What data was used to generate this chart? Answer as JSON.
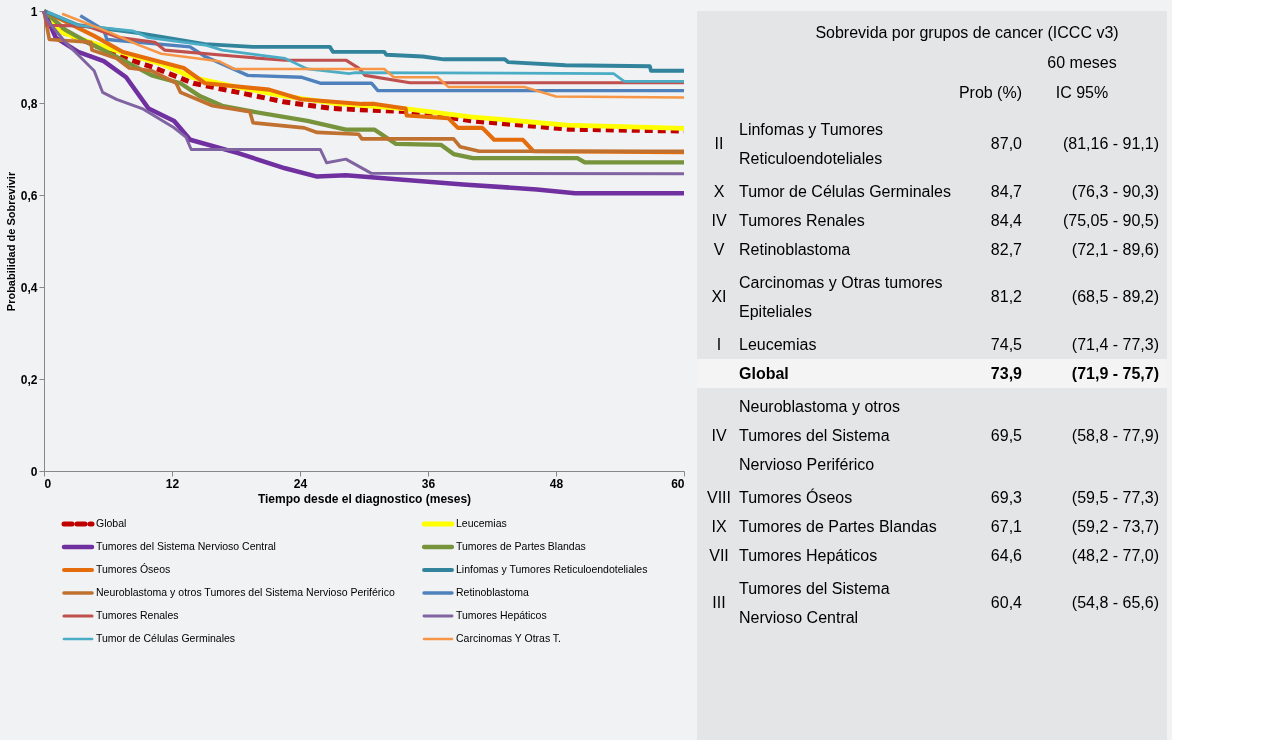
{
  "chart_data": [
    {
      "type": "line",
      "xlabel": "Tiempo desde el diagnostico (meses)",
      "ylabel": "Probabilidad de Sobrevivir",
      "xlim": [
        0,
        60
      ],
      "xticks": [
        0,
        12,
        24,
        36,
        48,
        60
      ],
      "ylim": [
        0,
        1
      ],
      "yticks": [
        0,
        {
          "value": 0.2,
          "label": "0,2"
        },
        {
          "value": 0.4,
          "label": "0,4"
        },
        {
          "value": 0.6,
          "label": "0,6"
        },
        {
          "value": 0.8,
          "label": "0,8"
        },
        1
      ],
      "grid": false,
      "legend": "bottom",
      "marker": "none",
      "line_style": "solid",
      "series": [
        {
          "name": "Global",
          "color": "#c00000",
          "line_style": "dashed",
          "x": [
            0,
            1.4,
            4.1,
            7.7,
            10.4,
            14,
            18.2,
            22.6,
            27.1,
            34.3,
            40.2,
            49.2,
            60
          ],
          "values": [
            1,
            0.957,
            0.932,
            0.897,
            0.876,
            0.843,
            0.823,
            0.802,
            0.788,
            0.781,
            0.761,
            0.743,
            0.739
          ]
        },
        {
          "name": "Leucemias",
          "color": "#ffff00",
          "x": [
            0,
            1.5,
            4,
            8,
            11,
            14,
            18,
            22.6,
            27,
            34,
            40,
            49,
            55,
            60
          ],
          "values": [
            1,
            0.955,
            0.935,
            0.905,
            0.885,
            0.855,
            0.835,
            0.815,
            0.8,
            0.787,
            0.77,
            0.752,
            0.748,
            0.745
          ]
        },
        {
          "name": "Tumores del Sistema Nervioso Central",
          "color": "#7030a0",
          "x": [
            0,
            1.1,
            3.2,
            5.6,
            7.7,
            9.8,
            12.2,
            13.7,
            18.2,
            22.6,
            25.6,
            28.3,
            39.3,
            46.2,
            49.8,
            60
          ],
          "values": [
            1,
            0.942,
            0.911,
            0.891,
            0.856,
            0.788,
            0.761,
            0.72,
            0.691,
            0.658,
            0.64,
            0.643,
            0.623,
            0.612,
            0.604,
            0.604
          ]
        },
        {
          "name": "Tumores de Partes Blandas",
          "color": "#77933c",
          "x": [
            0,
            2,
            4.1,
            7.1,
            10.1,
            12.8,
            14.6,
            16.7,
            19.6,
            24.7,
            28.3,
            31,
            33,
            37.2,
            38.4,
            40.2,
            50,
            50.7,
            60
          ],
          "values": [
            1,
            0.959,
            0.932,
            0.897,
            0.86,
            0.843,
            0.815,
            0.794,
            0.781,
            0.761,
            0.742,
            0.742,
            0.711,
            0.709,
            0.689,
            0.68,
            0.68,
            0.671,
            0.671
          ]
        },
        {
          "name": "Tumores Óseos",
          "color": "#e46c0a",
          "x": [
            0,
            4.7,
            7.4,
            13.1,
            15.1,
            21.1,
            24.1,
            29.8,
            31,
            33.9,
            34,
            37.9,
            38.8,
            41.1,
            42.2,
            44.9,
            45.9,
            60
          ],
          "values": [
            1,
            0.946,
            0.911,
            0.876,
            0.843,
            0.829,
            0.808,
            0.798,
            0.798,
            0.788,
            0.773,
            0.767,
            0.746,
            0.746,
            0.72,
            0.72,
            0.695,
            0.693
          ]
        },
        {
          "name": "Linfomas y Tumores Reticuloendoteliales",
          "color": "#31849b",
          "x": [
            0,
            3.2,
            8.6,
            15.1,
            19.6,
            26.8,
            27.1,
            31.9,
            32.1,
            35.5,
            37.5,
            43.2,
            43.5,
            48.9,
            56.8,
            56.9,
            60
          ],
          "values": [
            1,
            0.969,
            0.953,
            0.928,
            0.922,
            0.922,
            0.911,
            0.911,
            0.905,
            0.901,
            0.895,
            0.895,
            0.889,
            0.882,
            0.88,
            0.87,
            0.87
          ]
        },
        {
          "name": "Neuroblastoma y otros Tumores del Sistema Nervioso Periférico",
          "color": "#c0712f",
          "x": [
            0,
            0.5,
            4.4,
            4.5,
            6.8,
            8,
            10.1,
            12.4,
            12.8,
            15.8,
            19.3,
            19.6,
            24.4,
            25.6,
            29.5,
            29.8,
            38.4,
            39,
            40.8,
            60
          ],
          "values": [
            1,
            0.938,
            0.932,
            0.915,
            0.897,
            0.876,
            0.87,
            0.843,
            0.823,
            0.794,
            0.781,
            0.757,
            0.746,
            0.736,
            0.732,
            0.722,
            0.722,
            0.705,
            0.695,
            0.695
          ]
        },
        {
          "name": "Retinoblastoma",
          "color": "#4f81bd",
          "x": [
            3.4,
            5.6,
            5.9,
            13.7,
            15.1,
            19.1,
            24.1,
            25.9,
            30.7,
            31.3,
            60
          ],
          "values": [
            0.99,
            0.959,
            0.938,
            0.922,
            0.901,
            0.86,
            0.856,
            0.843,
            0.843,
            0.827,
            0.827
          ]
        },
        {
          "name": "Tumores Renales",
          "color": "#c0504d",
          "x": [
            0,
            0.3,
            4.1,
            7.1,
            10.4,
            11.3,
            18.2,
            22.6,
            28.3,
            29.5,
            30.1,
            34.3,
            60
          ],
          "values": [
            1,
            0.969,
            0.967,
            0.942,
            0.932,
            0.915,
            0.901,
            0.893,
            0.893,
            0.876,
            0.86,
            0.844,
            0.844
          ]
        },
        {
          "name": "Tumores Hepáticos",
          "color": "#8064a2",
          "x": [
            0,
            0.3,
            2,
            4.7,
            5.5,
            6.8,
            9.2,
            12.2,
            13.3,
            13.8,
            25.9,
            26.5,
            28.3,
            30.7,
            60
          ],
          "values": [
            1,
            0.98,
            0.932,
            0.87,
            0.823,
            0.808,
            0.788,
            0.746,
            0.726,
            0.699,
            0.699,
            0.67,
            0.678,
            0.647,
            0.646
          ]
        },
        {
          "name": "Tumor de Células Germinales",
          "color": "#4bacc6",
          "x": [
            0.3,
            3.2,
            8.3,
            9.8,
            15.1,
            16.7,
            22.6,
            24.7,
            28.6,
            29.2,
            53.4,
            54.4,
            60
          ],
          "values": [
            0.998,
            0.969,
            0.957,
            0.942,
            0.926,
            0.915,
            0.897,
            0.874,
            0.864,
            0.866,
            0.864,
            0.847,
            0.847
          ]
        },
        {
          "name": "Carcinomas Y Otras T.",
          "color": "#f79646",
          "x": [
            1.7,
            6.2,
            8.9,
            11,
            16.4,
            17.8,
            31.9,
            32.8,
            36.9,
            37.9,
            45,
            48,
            60
          ],
          "values": [
            0.994,
            0.953,
            0.926,
            0.907,
            0.891,
            0.874,
            0.874,
            0.856,
            0.856,
            0.835,
            0.835,
            0.814,
            0.812
          ]
        }
      ]
    },
    {
      "type": "other",
      "title": "Sobrevida por grupos de cancer (ICCC v3)",
      "subtitle": "60 meses",
      "annotations": [
        "Prob (%)",
        "IC 95%",
        "II",
        "Linfomas y Tumores Reticuloendoteliales",
        "87,0",
        "(81,16 -  91,1)",
        "X",
        "Tumor de Células Germinales",
        "84,7",
        "(76,3 -  90,3)",
        "IV",
        "Tumores Renales",
        "84,4",
        "(75,05 -  90,5)",
        "V",
        "Retinoblastoma",
        "82,7",
        "(72,1 -  89,6)",
        "XI",
        "Carcinomas y Otras tumores Epiteliales",
        "81,2",
        "(68,5 -  89,2)",
        "I",
        "Leucemias",
        "74,5",
        "(71,4 -  77,3)",
        null,
        "Global",
        "73,9",
        "(71,9 -  75,7)",
        "IV",
        "Neuroblastoma y otros Tumores del Sistema Nervioso Periférico",
        "69,5",
        "(58,8 -  77,9)",
        "VIII",
        "Tumores Óseos",
        "69,3",
        "(59,5 -  77,3)",
        "IX",
        "Tumores de Partes Blandas",
        "67,1",
        "(59,2 -  73,7)",
        "VII",
        "Tumores Hepáticos",
        "64,6",
        "(48,2 -  77,0)",
        "III",
        "Tumores del Sistema Nervioso Central",
        "60,4",
        "(54,8 -  65,6)"
      ]
    }
  ]
}
